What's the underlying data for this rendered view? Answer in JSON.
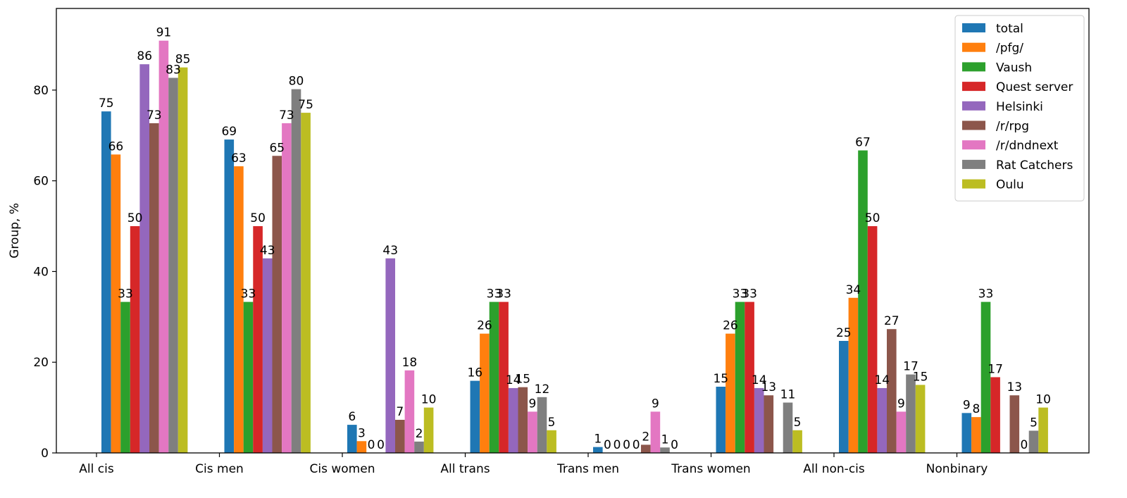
{
  "chart_data": {
    "type": "bar",
    "ylabel": "Group, %",
    "xlabel": "",
    "ylim": [
      0,
      98
    ],
    "yticks": [
      0,
      20,
      40,
      60,
      80
    ],
    "grid": false,
    "legend_position": "top-right",
    "categories": [
      "All cis",
      "Cis men",
      "Cis women",
      "All trans",
      "Trans men",
      "Trans women",
      "All non-cis",
      "Nonbinary"
    ],
    "series": [
      {
        "name": "total",
        "color": "#1f77b4",
        "values": [
          75.3,
          69.1,
          6.2,
          15.9,
          1.3,
          14.6,
          24.7,
          8.8
        ],
        "labels": [
          "75",
          "69",
          "6",
          "16",
          "1",
          "15",
          "25",
          "9"
        ]
      },
      {
        "name": "/pfg/",
        "color": "#ff7f0e",
        "values": [
          65.8,
          63.2,
          2.6,
          26.3,
          0,
          26.3,
          34.2,
          7.9
        ],
        "labels": [
          "66",
          "63",
          "3",
          "26",
          "0",
          "26",
          "34",
          "8"
        ]
      },
      {
        "name": "Vaush",
        "color": "#2ca02c",
        "values": [
          33.3,
          33.3,
          0,
          33.3,
          0,
          33.3,
          66.7,
          33.3
        ],
        "labels": [
          "33",
          "33",
          "0",
          "33",
          "0",
          "33",
          "67",
          "33"
        ]
      },
      {
        "name": "Quest server",
        "color": "#d62728",
        "values": [
          50,
          50,
          0,
          33.3,
          0,
          33.3,
          50,
          16.7
        ],
        "labels": [
          "50",
          "50",
          "0",
          "33",
          "0",
          "33",
          "50",
          "17"
        ]
      },
      {
        "name": "Helsinki",
        "color": "#9467bd",
        "values": [
          85.7,
          42.9,
          42.9,
          14.3,
          0,
          14.3,
          14.3,
          0
        ],
        "labels": [
          "86",
          "43",
          "43",
          "14",
          "0",
          "14",
          "14",
          ""
        ]
      },
      {
        "name": "/r/rpg",
        "color": "#8c564b",
        "values": [
          72.7,
          65.5,
          7.3,
          14.5,
          1.8,
          12.7,
          27.3,
          12.7
        ],
        "labels": [
          "73",
          "65",
          "7",
          "15",
          "2",
          "13",
          "27",
          "13"
        ]
      },
      {
        "name": "/r/dndnext",
        "color": "#e377c2",
        "values": [
          90.9,
          72.7,
          18.2,
          9.1,
          9.1,
          0,
          9.1,
          0
        ],
        "labels": [
          "91",
          "73",
          "18",
          "9",
          "9",
          "",
          "9",
          "0"
        ]
      },
      {
        "name": "Rat Catchers",
        "color": "#7f7f7f",
        "values": [
          82.7,
          80.2,
          2.5,
          12.3,
          1.2,
          11.1,
          17.3,
          4.9
        ],
        "labels": [
          "83",
          "80",
          "2",
          "12",
          "1",
          "11",
          "17",
          "5"
        ]
      },
      {
        "name": "Oulu",
        "color": "#bcbd22",
        "values": [
          85,
          75,
          10,
          5,
          0,
          5,
          15,
          10
        ],
        "labels": [
          "85",
          "75",
          "10",
          "5",
          "0",
          "5",
          "15",
          "10"
        ]
      }
    ]
  }
}
